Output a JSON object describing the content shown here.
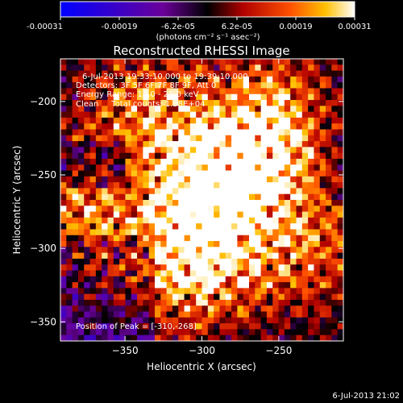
{
  "chart_data": {
    "type": "heatmap",
    "title": "Reconstructed RHESSI Image",
    "colorbar": {
      "ticks": [
        "-0.00031",
        "-0.00019",
        "-6.2e-05",
        "6.2e-05",
        "0.00019",
        "0.00031"
      ],
      "unit": "(photons cm⁻² s⁻¹ asec⁻²)",
      "range": [
        -0.00031,
        0.00031
      ]
    },
    "xlabel": "Heliocentric X (arcsec)",
    "ylabel": "Heliocentric Y (arcsec)",
    "xlim": [
      -392,
      -208
    ],
    "ylim": [
      -363,
      -171
    ],
    "xticks": [
      -350,
      -300,
      -250
    ],
    "yticks": [
      -200,
      -250,
      -300,
      -350
    ],
    "xtick_labels": [
      "−350",
      "−300",
      "−250"
    ],
    "ytick_labels": [
      "−200",
      "−250",
      "−300",
      "−350"
    ],
    "info_lines": [
      "6-Jul-2013 19:33:10.000 to 19:39:10.000",
      "Detectors: 3F 5F 6F 7F 8F 9F, Att 0",
      "Energy Range: 12.0 - 25.0 keV",
      "Clean     Total counts: 1.38E+04"
    ],
    "peak_text": "Position of Peak = [-310,-268]",
    "peak": [
      -310,
      -268
    ],
    "timestamp": "6-Jul-2013 21:02",
    "image_grid": [
      48,
      48
    ],
    "sources": [
      {
        "x": -272,
        "y": -245,
        "peak": 1.0
      },
      {
        "x": -298,
        "y": -265,
        "peak": 0.9
      },
      {
        "x": -300,
        "y": -312,
        "peak": 0.85
      },
      {
        "x": -335,
        "y": -205,
        "peak": 0.6
      },
      {
        "x": -255,
        "y": -205,
        "peak": 0.55
      },
      {
        "x": -385,
        "y": -270,
        "peak": 0.55
      },
      {
        "x": -230,
        "y": -300,
        "peak": 0.5
      },
      {
        "x": -360,
        "y": -320,
        "peak": 0.35
      }
    ]
  }
}
